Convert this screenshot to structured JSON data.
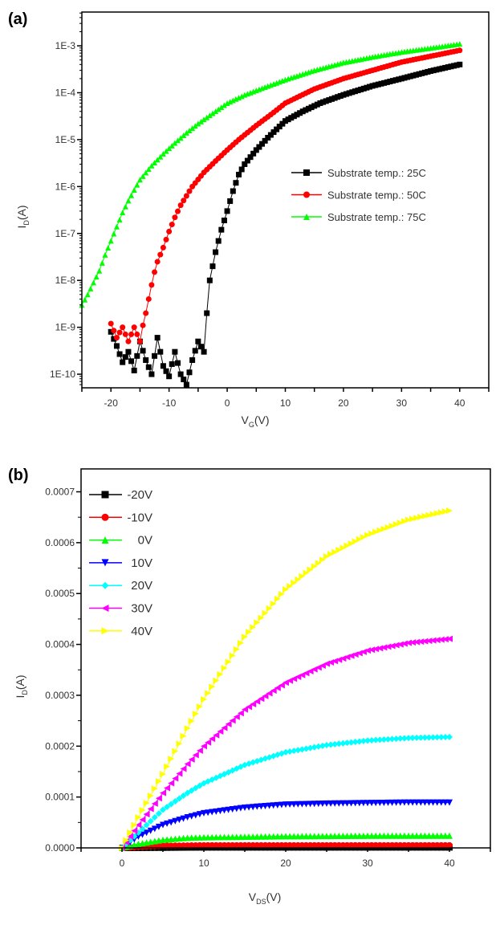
{
  "chart_data": [
    {
      "type": "scatter",
      "panel_label": "(a)",
      "title": "",
      "xlabel": "V",
      "xlabel_sub": "G",
      "xlabel_unit": "(V)",
      "ylabel": "I",
      "ylabel_sub": "D",
      "ylabel_unit": "(A)",
      "yscale": "log",
      "xlim": [
        -25,
        45
      ],
      "ylim_exp": [
        -10.29,
        -2.28
      ],
      "x_ticks": [
        -20,
        -10,
        0,
        10,
        20,
        30,
        40
      ],
      "x_tick_labels": [
        "-20",
        "-10",
        "0",
        "10",
        "20",
        "30",
        "40"
      ],
      "y_ticks_exp": [
        -3,
        -4,
        -5,
        -6,
        -7,
        -8,
        -9,
        -10
      ],
      "y_tick_labels": [
        "1E-3",
        "1E-4",
        "1E-5",
        "1E-6",
        "1E-7",
        "1E-8",
        "1E-9",
        "1E-10"
      ],
      "grid": false,
      "legend_position": "right-middle",
      "series": [
        {
          "name": "Substrate temp.: 25C",
          "color": "#000000",
          "marker": "square",
          "x": [
            -20,
            -19,
            -18,
            -17,
            -16,
            -15,
            -14,
            -13,
            -12,
            -11,
            -10,
            -9,
            -8,
            -7,
            -6,
            -5,
            -4,
            -3.5,
            -3,
            -2,
            -1,
            0,
            1,
            2,
            3,
            5,
            7,
            10,
            13,
            16,
            20,
            25,
            30,
            35,
            40
          ],
          "y": [
            8e-10,
            4e-10,
            1.8e-10,
            3e-10,
            1.2e-10,
            5e-10,
            2e-10,
            1e-10,
            6e-10,
            1.5e-10,
            9e-11,
            3e-10,
            1e-10,
            6e-11,
            2e-10,
            5e-10,
            3e-10,
            2e-09,
            1e-08,
            4e-08,
            1.2e-07,
            3e-07,
            8e-07,
            1.8e-06,
            3e-06,
            6e-06,
            1.1e-05,
            2.5e-05,
            4e-05,
            6e-05,
            9e-05,
            0.00014,
            0.0002,
            0.00029,
            0.0004
          ]
        },
        {
          "name": "Substrate temp.: 50C",
          "color": "#ff0000",
          "marker": "circle",
          "x": [
            -20,
            -19,
            -18,
            -17,
            -16,
            -15,
            -14.5,
            -14,
            -13.5,
            -13,
            -12.5,
            -12,
            -11,
            -10,
            -9,
            -8,
            -6,
            -4,
            -2,
            0,
            2,
            5,
            8,
            10,
            15,
            20,
            25,
            30,
            35,
            40
          ],
          "y": [
            1.2e-09,
            6e-10,
            1e-09,
            5e-10,
            1e-09,
            5e-10,
            1.1e-09,
            2e-09,
            4e-09,
            8e-09,
            1.5e-08,
            2.5e-08,
            5e-08,
            1.1e-07,
            2.2e-07,
            4e-07,
            1e-06,
            2e-06,
            3.5e-06,
            6e-06,
            1e-05,
            2e-05,
            3.8e-05,
            6e-05,
            0.00012,
            0.0002,
            0.0003,
            0.00045,
            0.0006,
            0.0008
          ]
        },
        {
          "name": "Substrate temp.: 75C",
          "color": "#00ff00",
          "marker": "triangle-up",
          "x": [
            -25,
            -24,
            -23,
            -22,
            -21,
            -20,
            -19,
            -18,
            -17,
            -16,
            -15,
            -13,
            -11,
            -9,
            -7,
            -5,
            -3,
            0,
            3,
            6,
            10,
            15,
            20,
            25,
            30,
            35,
            40
          ],
          "y": [
            3e-09,
            5e-09,
            9e-09,
            1.6e-08,
            3.5e-08,
            7e-08,
            1.4e-07,
            2.8e-07,
            5e-07,
            8.5e-07,
            1.4e-06,
            2.8e-06,
            5e-06,
            8.5e-06,
            1.4e-05,
            2.2e-05,
            3.3e-05,
            6e-05,
            9e-05,
            0.000125,
            0.00019,
            0.0003,
            0.00044,
            0.00058,
            0.00074,
            0.0009,
            0.0011
          ]
        }
      ]
    },
    {
      "type": "scatter",
      "panel_label": "(b)",
      "title": "",
      "xlabel": "V",
      "xlabel_sub": "DS",
      "xlabel_unit": "(V)",
      "ylabel": "I",
      "ylabel_sub": "D",
      "ylabel_unit": "(A)",
      "yscale": "linear",
      "xlim": [
        -5,
        45
      ],
      "ylim": [
        0,
        0.000745
      ],
      "x_ticks": [
        0,
        10,
        20,
        30,
        40
      ],
      "x_tick_labels": [
        "0",
        "10",
        "20",
        "30",
        "40"
      ],
      "y_ticks": [
        0,
        0.0001,
        0.0002,
        0.0003,
        0.0004,
        0.0005,
        0.0006,
        0.0007
      ],
      "y_tick_labels": [
        "0.0000",
        "0.0001",
        "0.0002",
        "0.0003",
        "0.0004",
        "0.0005",
        "0.0006",
        "0.0007"
      ],
      "grid": false,
      "legend_position": "top-left",
      "series": [
        {
          "name": "-20V",
          "color": "#000000",
          "marker": "square",
          "x": [
            0,
            5,
            10,
            20,
            30,
            40
          ],
          "y": [
            0,
            5e-07,
            1e-06,
            1e-06,
            1e-06,
            1e-06
          ]
        },
        {
          "name": "-10V",
          "color": "#ff0000",
          "marker": "circle",
          "x": [
            0,
            2,
            5,
            10,
            20,
            30,
            40
          ],
          "y": [
            0,
            2e-06,
            4e-06,
            5e-06,
            5e-06,
            5e-06,
            5e-06
          ]
        },
        {
          "name": "0V",
          "color": "#00ff00",
          "marker": "triangle-up",
          "x": [
            0,
            2,
            5,
            8,
            10,
            15,
            20,
            30,
            40
          ],
          "y": [
            0,
            8e-06,
            1.6e-05,
            2e-05,
            2.1e-05,
            2.2e-05,
            2.3e-05,
            2.4e-05,
            2.4e-05
          ]
        },
        {
          "name": "10V",
          "color": "#0000ff",
          "marker": "triangle-down",
          "x": [
            0,
            2,
            5,
            8,
            10,
            15,
            20,
            25,
            30,
            35,
            40
          ],
          "y": [
            0,
            2.2e-05,
            4.5e-05,
            6e-05,
            6.8e-05,
            7.9e-05,
            8.5e-05,
            8.7e-05,
            8.8e-05,
            8.9e-05,
            8.9e-05
          ]
        },
        {
          "name": "20V",
          "color": "#00ffff",
          "marker": "diamond",
          "x": [
            0,
            2,
            5,
            8,
            10,
            15,
            20,
            25,
            30,
            35,
            40
          ],
          "y": [
            0,
            3e-05,
            7.5e-05,
            0.000108,
            0.000127,
            0.000163,
            0.000188,
            0.000202,
            0.000211,
            0.000216,
            0.000218
          ]
        },
        {
          "name": "30V",
          "color": "#ff00ff",
          "marker": "triangle-left",
          "x": [
            0,
            2,
            5,
            8,
            10,
            15,
            20,
            25,
            30,
            35,
            40
          ],
          "y": [
            0,
            4.5e-05,
            0.000108,
            0.000165,
            0.0002,
            0.000272,
            0.000325,
            0.000362,
            0.000388,
            0.000403,
            0.000411
          ]
        },
        {
          "name": "40V",
          "color": "#ffff00",
          "marker": "triangle-right",
          "x": [
            0,
            2,
            5,
            8,
            10,
            15,
            20,
            25,
            30,
            35,
            40
          ],
          "y": [
            0,
            6e-05,
            0.000145,
            0.000235,
            0.000292,
            0.000415,
            0.000508,
            0.000573,
            0.000615,
            0.000645,
            0.000663
          ]
        }
      ]
    }
  ]
}
